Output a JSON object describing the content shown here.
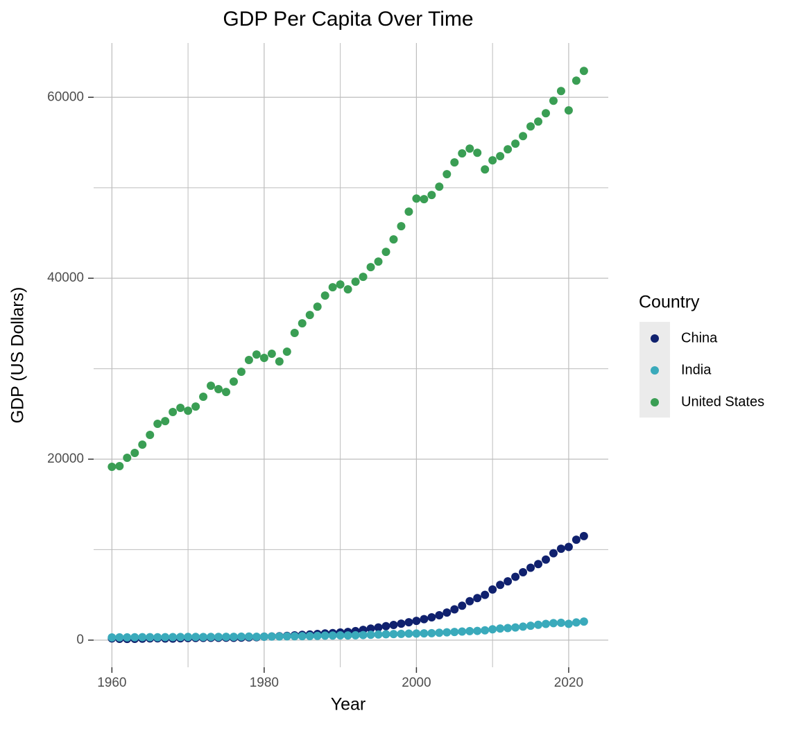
{
  "chart_data": {
    "type": "scatter",
    "title": "GDP Per Capita Over Time",
    "x_label": "Year",
    "y_label": "GDP (US Dollars)",
    "legend_title": "Country",
    "legend": "right",
    "grid": true,
    "x": [
      1960,
      1961,
      1962,
      1963,
      1964,
      1965,
      1966,
      1967,
      1968,
      1969,
      1970,
      1971,
      1972,
      1973,
      1974,
      1975,
      1976,
      1977,
      1978,
      1979,
      1980,
      1981,
      1982,
      1983,
      1984,
      1985,
      1986,
      1987,
      1988,
      1989,
      1990,
      1991,
      1992,
      1993,
      1994,
      1995,
      1996,
      1997,
      1998,
      1999,
      2000,
      2001,
      2002,
      2003,
      2004,
      2005,
      2006,
      2007,
      2008,
      2009,
      2010,
      2011,
      2012,
      2013,
      2014,
      2015,
      2016,
      2017,
      2018,
      2019,
      2020,
      2021,
      2022
    ],
    "xlim": [
      1957.6,
      2025.2
    ],
    "xticks": [
      1960,
      1980,
      2000,
      2020
    ],
    "x_minor_ticks": [
      1970,
      1990,
      2010
    ],
    "ylim": [
      -3000,
      66000
    ],
    "yticks": [
      0,
      20000,
      40000,
      60000
    ],
    "y_minor_ticks": [
      10000,
      30000,
      50000
    ],
    "series": [
      {
        "name": "China",
        "color": "#10216e",
        "values": [
          190,
          140,
          130,
          145,
          165,
          190,
          205,
          185,
          175,
          200,
          230,
          240,
          245,
          255,
          255,
          270,
          260,
          280,
          305,
          325,
          380,
          400,
          430,
          470,
          530,
          580,
          620,
          680,
          740,
          780,
          840,
          900,
          1000,
          1130,
          1270,
          1400,
          1540,
          1680,
          1820,
          1970,
          2130,
          2320,
          2520,
          2750,
          3050,
          3400,
          3800,
          4300,
          4650,
          5000,
          5600,
          6100,
          6500,
          7000,
          7500,
          8000,
          8400,
          8900,
          9600,
          10100,
          10300,
          11100,
          11500
        ]
      },
      {
        "name": "India",
        "color": "#3aaabb",
        "values": [
          300,
          305,
          310,
          320,
          330,
          325,
          320,
          330,
          335,
          345,
          350,
          350,
          345,
          355,
          355,
          365,
          365,
          380,
          390,
          370,
          385,
          400,
          405,
          420,
          430,
          440,
          450,
          470,
          500,
          510,
          530,
          520,
          540,
          560,
          590,
          620,
          650,
          670,
          690,
          720,
          730,
          750,
          770,
          810,
          860,
          900,
          950,
          1000,
          1020,
          1080,
          1200,
          1280,
          1330,
          1400,
          1490,
          1590,
          1700,
          1790,
          1880,
          1920,
          1800,
          1950,
          2050
        ]
      },
      {
        "name": "United States",
        "color": "#3a9e54",
        "values": [
          19160,
          19230,
          20150,
          20690,
          21610,
          22680,
          23910,
          24210,
          25210,
          25670,
          25360,
          25820,
          26900,
          28120,
          27740,
          27430,
          28580,
          29660,
          30960,
          31570,
          31190,
          31650,
          30800,
          31880,
          33950,
          35020,
          35940,
          36860,
          38080,
          39000,
          39310,
          38770,
          39620,
          40150,
          41230,
          41840,
          42910,
          44290,
          45750,
          47360,
          48810,
          48740,
          49200,
          50120,
          51500,
          52800,
          53800,
          54330,
          53870,
          52030,
          53030,
          53490,
          54250,
          54870,
          55710,
          56780,
          57320,
          58240,
          59620,
          60690,
          58550,
          61840,
          62910
        ]
      }
    ]
  }
}
